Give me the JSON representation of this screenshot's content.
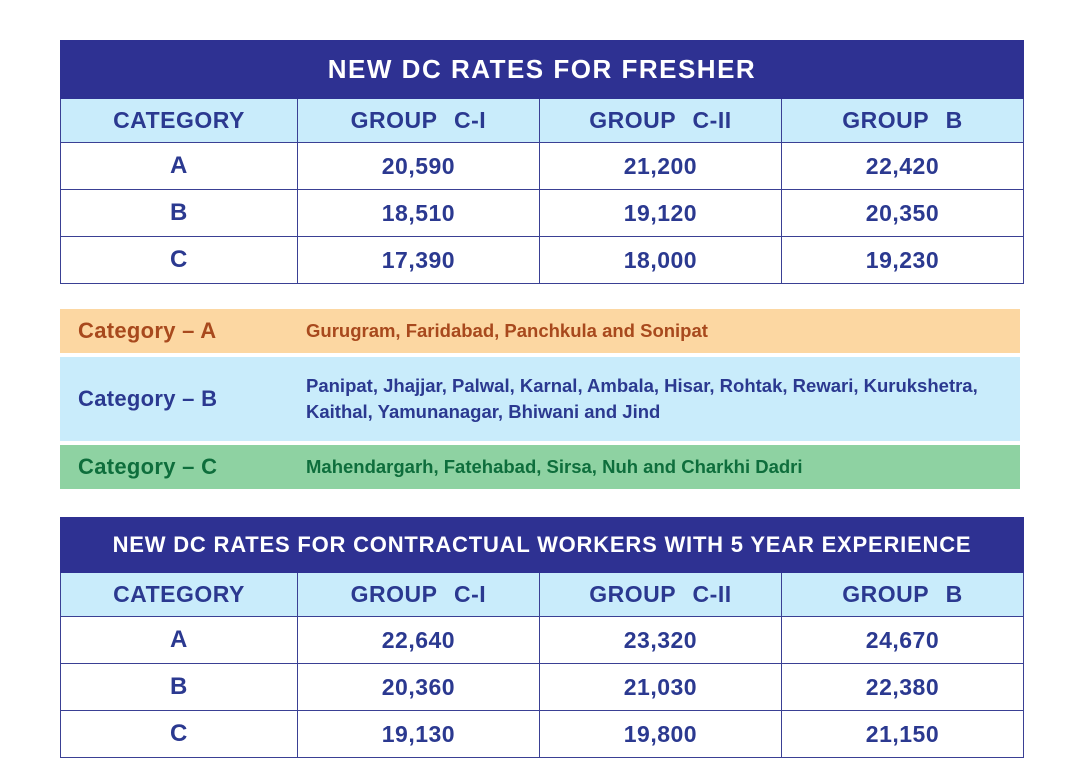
{
  "colors": {
    "table_title_bg": "#2e3192",
    "table_title_text": "#ffffff",
    "column_header_bg": "#c9ecfb",
    "primary_text": "#2b3990",
    "grid_border": "#3a4094",
    "legend_a_bg": "#fcd7a2",
    "legend_a_text": "#a8491d",
    "legend_b_bg": "#c9ecfb",
    "legend_b_text": "#2b3990",
    "legend_c_bg": "#8ed2a2",
    "legend_c_text": "#0e6e3c"
  },
  "tables": [
    {
      "title": "NEW DC RATES FOR FRESHER",
      "columns": [
        "CATEGORY",
        "GROUP C-I",
        "GROUP C-II",
        "GROUP B"
      ],
      "rows": [
        {
          "category": "A",
          "values": [
            "20,590",
            "21,200",
            "22,420"
          ]
        },
        {
          "category": "B",
          "values": [
            "18,510",
            "19,120",
            "20,350"
          ]
        },
        {
          "category": "C",
          "values": [
            "17,390",
            "18,000",
            "19,230"
          ]
        }
      ]
    },
    {
      "title": "NEW DC RATES FOR CONTRACTUAL WORKERS WITH 5 YEAR EXPERIENCE",
      "columns": [
        "CATEGORY",
        "GROUP C-I",
        "GROUP C-II",
        "GROUP B"
      ],
      "rows": [
        {
          "category": "A",
          "values": [
            "22,640",
            "23,320",
            "24,670"
          ]
        },
        {
          "category": "B",
          "values": [
            "20,360",
            "21,030",
            "22,380"
          ]
        },
        {
          "category": "C",
          "values": [
            "19,130",
            "19,800",
            "21,150"
          ]
        }
      ]
    }
  ],
  "legend": {
    "items": [
      {
        "label": "Category – A",
        "districts": "Gurugram, Faridabad, Panchkula and Sonipat"
      },
      {
        "label": "Category – B",
        "districts": "Panipat, Jhajjar, Palwal, Karnal, Ambala, Hisar, Rohtak, Rewari, Kurukshetra, Kaithal, Yamunanagar, Bhiwani and Jind"
      },
      {
        "label": "Category – C",
        "districts": "Mahendargarh, Fatehabad, Sirsa, Nuh and Charkhi Dadri"
      }
    ]
  }
}
